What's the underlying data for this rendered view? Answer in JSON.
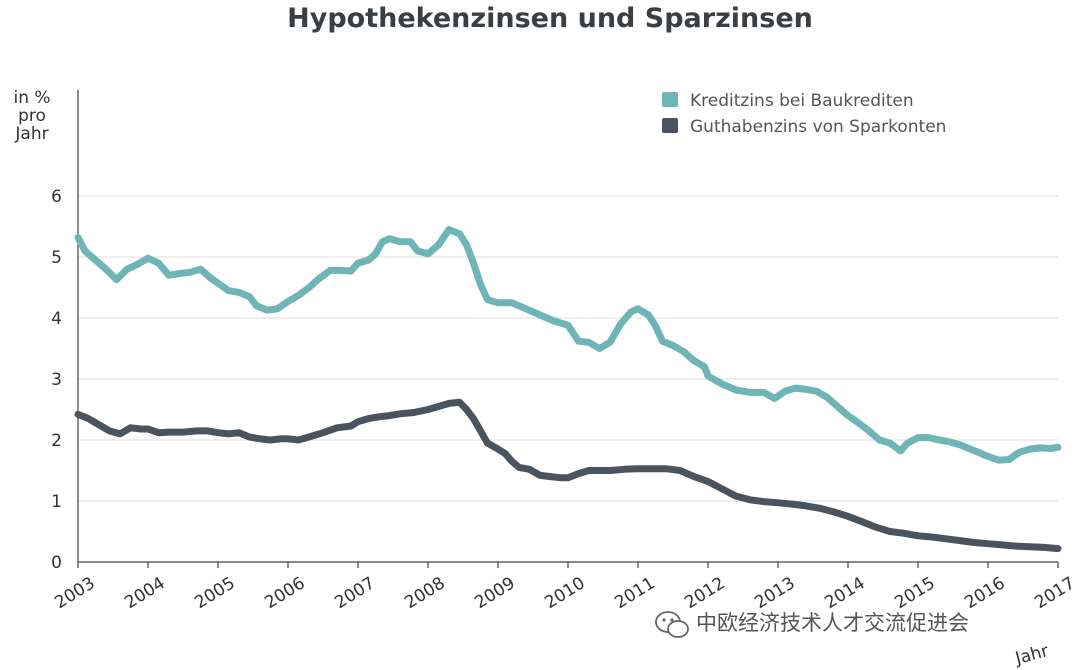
{
  "chart_data": {
    "type": "line",
    "title": "Hypothekenzinsen und Sparzinsen",
    "ylabel": [
      "in %",
      "pro",
      "Jahr"
    ],
    "xlabel": "Jahr",
    "ylim": [
      0,
      6.5
    ],
    "xlim": [
      2003,
      2017
    ],
    "yticks": [
      "0",
      "1",
      "2",
      "3",
      "4",
      "5",
      "6"
    ],
    "xticks": [
      "2003",
      "2004",
      "2005",
      "2006",
      "2007",
      "2008",
      "2009",
      "2010",
      "2011",
      "2012",
      "2013",
      "2014",
      "2015",
      "2016",
      "2017"
    ],
    "grid": true,
    "legend_position": "top-right",
    "series": [
      {
        "name": "Kreditzins bei Baukrediten",
        "color": "#6fb5b8",
        "points": [
          [
            2003.0,
            5.32
          ],
          [
            2003.1,
            5.1
          ],
          [
            2003.25,
            4.95
          ],
          [
            2003.4,
            4.8
          ],
          [
            2003.55,
            4.63
          ],
          [
            2003.7,
            4.8
          ],
          [
            2003.85,
            4.88
          ],
          [
            2004.0,
            4.98
          ],
          [
            2004.15,
            4.9
          ],
          [
            2004.3,
            4.7
          ],
          [
            2004.45,
            4.73
          ],
          [
            2004.6,
            4.75
          ],
          [
            2004.75,
            4.8
          ],
          [
            2004.9,
            4.65
          ],
          [
            2005.0,
            4.57
          ],
          [
            2005.15,
            4.45
          ],
          [
            2005.3,
            4.42
          ],
          [
            2005.45,
            4.35
          ],
          [
            2005.55,
            4.2
          ],
          [
            2005.7,
            4.13
          ],
          [
            2005.85,
            4.15
          ],
          [
            2006.0,
            4.27
          ],
          [
            2006.15,
            4.37
          ],
          [
            2006.3,
            4.5
          ],
          [
            2006.45,
            4.65
          ],
          [
            2006.6,
            4.78
          ],
          [
            2006.75,
            4.78
          ],
          [
            2006.9,
            4.77
          ],
          [
            2007.0,
            4.9
          ],
          [
            2007.15,
            4.95
          ],
          [
            2007.25,
            5.05
          ],
          [
            2007.35,
            5.25
          ],
          [
            2007.45,
            5.3
          ],
          [
            2007.6,
            5.25
          ],
          [
            2007.75,
            5.25
          ],
          [
            2007.85,
            5.1
          ],
          [
            2008.0,
            5.05
          ],
          [
            2008.15,
            5.2
          ],
          [
            2008.3,
            5.45
          ],
          [
            2008.45,
            5.38
          ],
          [
            2008.55,
            5.2
          ],
          [
            2008.65,
            4.9
          ],
          [
            2008.75,
            4.55
          ],
          [
            2008.85,
            4.3
          ],
          [
            2009.0,
            4.25
          ],
          [
            2009.2,
            4.25
          ],
          [
            2009.4,
            4.15
          ],
          [
            2009.6,
            4.05
          ],
          [
            2009.8,
            3.95
          ],
          [
            2010.0,
            3.88
          ],
          [
            2010.15,
            3.62
          ],
          [
            2010.3,
            3.6
          ],
          [
            2010.45,
            3.5
          ],
          [
            2010.6,
            3.6
          ],
          [
            2010.75,
            3.9
          ],
          [
            2010.9,
            4.1
          ],
          [
            2011.0,
            4.15
          ],
          [
            2011.15,
            4.05
          ],
          [
            2011.25,
            3.87
          ],
          [
            2011.35,
            3.62
          ],
          [
            2011.5,
            3.55
          ],
          [
            2011.65,
            3.45
          ],
          [
            2011.8,
            3.3
          ],
          [
            2011.95,
            3.2
          ],
          [
            2012.0,
            3.05
          ],
          [
            2012.2,
            2.92
          ],
          [
            2012.4,
            2.82
          ],
          [
            2012.6,
            2.78
          ],
          [
            2012.8,
            2.78
          ],
          [
            2012.95,
            2.68
          ],
          [
            2013.1,
            2.8
          ],
          [
            2013.25,
            2.85
          ],
          [
            2013.4,
            2.83
          ],
          [
            2013.55,
            2.8
          ],
          [
            2013.7,
            2.7
          ],
          [
            2013.85,
            2.55
          ],
          [
            2014.0,
            2.4
          ],
          [
            2014.15,
            2.28
          ],
          [
            2014.3,
            2.15
          ],
          [
            2014.45,
            2.0
          ],
          [
            2014.6,
            1.95
          ],
          [
            2014.75,
            1.82
          ],
          [
            2014.85,
            1.95
          ],
          [
            2015.0,
            2.04
          ],
          [
            2015.15,
            2.04
          ],
          [
            2015.3,
            2.0
          ],
          [
            2015.45,
            1.97
          ],
          [
            2015.6,
            1.92
          ],
          [
            2015.75,
            1.85
          ],
          [
            2015.9,
            1.78
          ],
          [
            2016.0,
            1.73
          ],
          [
            2016.15,
            1.67
          ],
          [
            2016.3,
            1.68
          ],
          [
            2016.45,
            1.8
          ],
          [
            2016.6,
            1.85
          ],
          [
            2016.75,
            1.87
          ],
          [
            2016.9,
            1.86
          ],
          [
            2017.0,
            1.88
          ]
        ]
      },
      {
        "name": "Guthabenzins von Sparkonten",
        "color": "#4a545e",
        "points": [
          [
            2003.0,
            2.42
          ],
          [
            2003.15,
            2.35
          ],
          [
            2003.3,
            2.25
          ],
          [
            2003.45,
            2.15
          ],
          [
            2003.6,
            2.1
          ],
          [
            2003.75,
            2.2
          ],
          [
            2003.9,
            2.18
          ],
          [
            2004.0,
            2.18
          ],
          [
            2004.15,
            2.12
          ],
          [
            2004.3,
            2.13
          ],
          [
            2004.5,
            2.13
          ],
          [
            2004.7,
            2.15
          ],
          [
            2004.85,
            2.15
          ],
          [
            2005.0,
            2.12
          ],
          [
            2005.15,
            2.1
          ],
          [
            2005.3,
            2.12
          ],
          [
            2005.45,
            2.05
          ],
          [
            2005.6,
            2.02
          ],
          [
            2005.75,
            2.0
          ],
          [
            2005.9,
            2.02
          ],
          [
            2006.0,
            2.02
          ],
          [
            2006.15,
            2.0
          ],
          [
            2006.3,
            2.05
          ],
          [
            2006.5,
            2.12
          ],
          [
            2006.7,
            2.2
          ],
          [
            2006.9,
            2.23
          ],
          [
            2007.0,
            2.3
          ],
          [
            2007.15,
            2.35
          ],
          [
            2007.3,
            2.38
          ],
          [
            2007.45,
            2.4
          ],
          [
            2007.6,
            2.43
          ],
          [
            2007.8,
            2.45
          ],
          [
            2008.0,
            2.5
          ],
          [
            2008.15,
            2.55
          ],
          [
            2008.3,
            2.6
          ],
          [
            2008.45,
            2.62
          ],
          [
            2008.55,
            2.5
          ],
          [
            2008.65,
            2.35
          ],
          [
            2008.75,
            2.15
          ],
          [
            2008.85,
            1.95
          ],
          [
            2009.0,
            1.85
          ],
          [
            2009.1,
            1.78
          ],
          [
            2009.2,
            1.65
          ],
          [
            2009.3,
            1.55
          ],
          [
            2009.45,
            1.52
          ],
          [
            2009.6,
            1.42
          ],
          [
            2009.75,
            1.4
          ],
          [
            2009.9,
            1.38
          ],
          [
            2010.0,
            1.38
          ],
          [
            2010.15,
            1.45
          ],
          [
            2010.3,
            1.5
          ],
          [
            2010.45,
            1.5
          ],
          [
            2010.6,
            1.5
          ],
          [
            2010.8,
            1.52
          ],
          [
            2011.0,
            1.53
          ],
          [
            2011.2,
            1.53
          ],
          [
            2011.4,
            1.53
          ],
          [
            2011.6,
            1.5
          ],
          [
            2011.8,
            1.4
          ],
          [
            2012.0,
            1.32
          ],
          [
            2012.2,
            1.2
          ],
          [
            2012.4,
            1.08
          ],
          [
            2012.6,
            1.02
          ],
          [
            2012.8,
            0.99
          ],
          [
            2013.0,
            0.97
          ],
          [
            2013.2,
            0.95
          ],
          [
            2013.4,
            0.92
          ],
          [
            2013.6,
            0.88
          ],
          [
            2013.8,
            0.82
          ],
          [
            2014.0,
            0.75
          ],
          [
            2014.2,
            0.66
          ],
          [
            2014.4,
            0.57
          ],
          [
            2014.6,
            0.5
          ],
          [
            2014.8,
            0.47
          ],
          [
            2015.0,
            0.43
          ],
          [
            2015.2,
            0.41
          ],
          [
            2015.4,
            0.38
          ],
          [
            2015.6,
            0.35
          ],
          [
            2015.8,
            0.32
          ],
          [
            2016.0,
            0.3
          ],
          [
            2016.2,
            0.28
          ],
          [
            2016.4,
            0.26
          ],
          [
            2016.6,
            0.25
          ],
          [
            2016.8,
            0.24
          ],
          [
            2017.0,
            0.22
          ]
        ]
      }
    ]
  },
  "watermark": {
    "text": "中欧经济技术人才交流促进会",
    "icon": "wechat-icon"
  }
}
